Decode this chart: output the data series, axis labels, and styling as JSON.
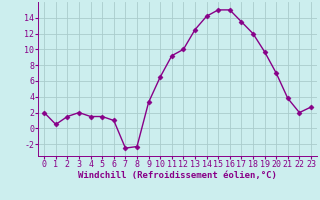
{
  "x": [
    0,
    1,
    2,
    3,
    4,
    5,
    6,
    7,
    8,
    9,
    10,
    11,
    12,
    13,
    14,
    15,
    16,
    17,
    18,
    19,
    20,
    21,
    22,
    23
  ],
  "y": [
    2,
    0.5,
    1.5,
    2,
    1.5,
    1.5,
    1,
    -2.5,
    -2.3,
    3.3,
    6.5,
    9.2,
    10,
    12.5,
    14.2,
    15,
    15,
    13.5,
    12,
    9.7,
    7,
    3.8,
    2,
    2.7
  ],
  "line_color": "#880088",
  "marker": "D",
  "marker_size": 2.5,
  "bg_color": "#cceeee",
  "grid_color": "#aacccc",
  "xlabel": "Windchill (Refroidissement éolien,°C)",
  "ylim": [
    -3.5,
    16
  ],
  "xlim": [
    -0.5,
    23.5
  ],
  "yticks": [
    -2,
    0,
    2,
    4,
    6,
    8,
    10,
    12,
    14
  ],
  "xticks": [
    0,
    1,
    2,
    3,
    4,
    5,
    6,
    7,
    8,
    9,
    10,
    11,
    12,
    13,
    14,
    15,
    16,
    17,
    18,
    19,
    20,
    21,
    22,
    23
  ],
  "axis_color": "#880088",
  "tick_color": "#880088",
  "xlabel_color": "#880088",
  "xlabel_fontsize": 6.5,
  "tick_fontsize": 6.0,
  "linewidth": 1.0
}
